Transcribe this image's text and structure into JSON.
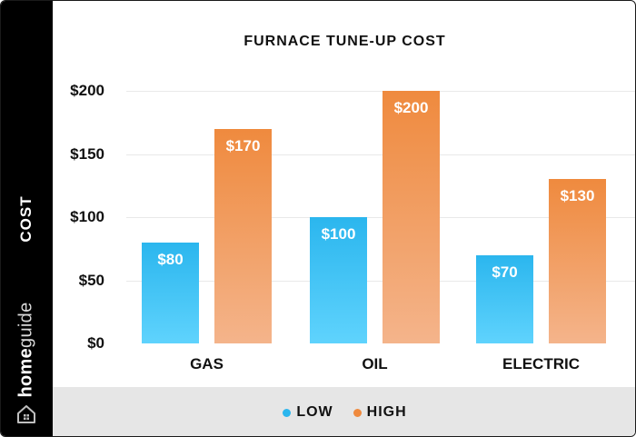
{
  "side_label": "COST",
  "brand": {
    "part1": "home",
    "part2": "guide"
  },
  "colors": {
    "low": "#2bb6ee",
    "high": "#ef8a3e"
  },
  "chart_data": {
    "type": "bar",
    "title": "FURNACE TUNE-UP COST",
    "xlabel": "",
    "ylabel": "COST",
    "ylim": [
      0,
      200
    ],
    "yticks": [
      0,
      50,
      100,
      150,
      200
    ],
    "ytick_labels": [
      "$0",
      "$50",
      "$100",
      "$150",
      "$200"
    ],
    "categories": [
      "GAS",
      "OIL",
      "ELECTRIC"
    ],
    "series": [
      {
        "name": "LOW",
        "values": [
          80,
          100,
          70
        ],
        "labels": [
          "$80",
          "$100",
          "$70"
        ]
      },
      {
        "name": "HIGH",
        "values": [
          170,
          200,
          130
        ],
        "labels": [
          "$170",
          "$200",
          "$130"
        ]
      }
    ],
    "legend": [
      "LOW",
      "HIGH"
    ]
  }
}
